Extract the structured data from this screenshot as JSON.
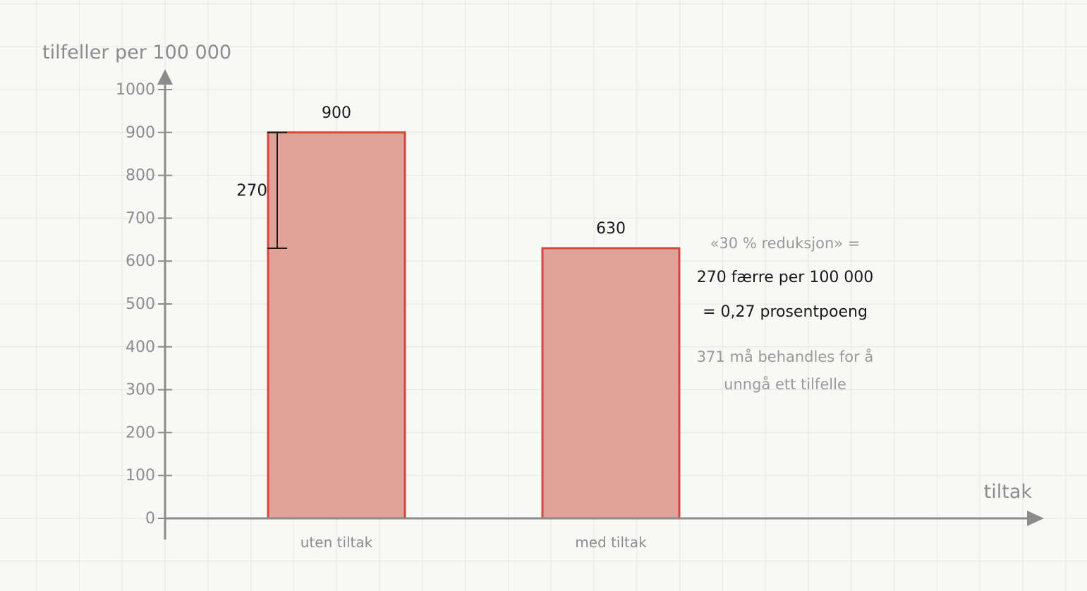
{
  "chart_data": {
    "type": "bar",
    "ylabel": "tilfeller per 100 000",
    "xlabel": "tiltak",
    "categories": [
      "uten tiltak",
      "med tiltak"
    ],
    "values": [
      900,
      630
    ],
    "value_labels": [
      "900",
      "630"
    ],
    "ylim": [
      0,
      1000
    ],
    "yticks": [
      0,
      100,
      200,
      300,
      400,
      500,
      600,
      700,
      800,
      900,
      1000
    ],
    "grid": true,
    "colors": {
      "bar_fill": "#e0a299",
      "bar_stroke": "#d0493b",
      "axis": "#8c8c8c"
    },
    "difference": {
      "from": 900,
      "to": 630,
      "label": "270"
    },
    "annotations": [
      "«30 % reduksjon» =",
      "270 færre per 100 000",
      "= 0,27 prosentpoeng",
      "371 må behandles for å",
      "unngå ett tilfelle"
    ]
  }
}
